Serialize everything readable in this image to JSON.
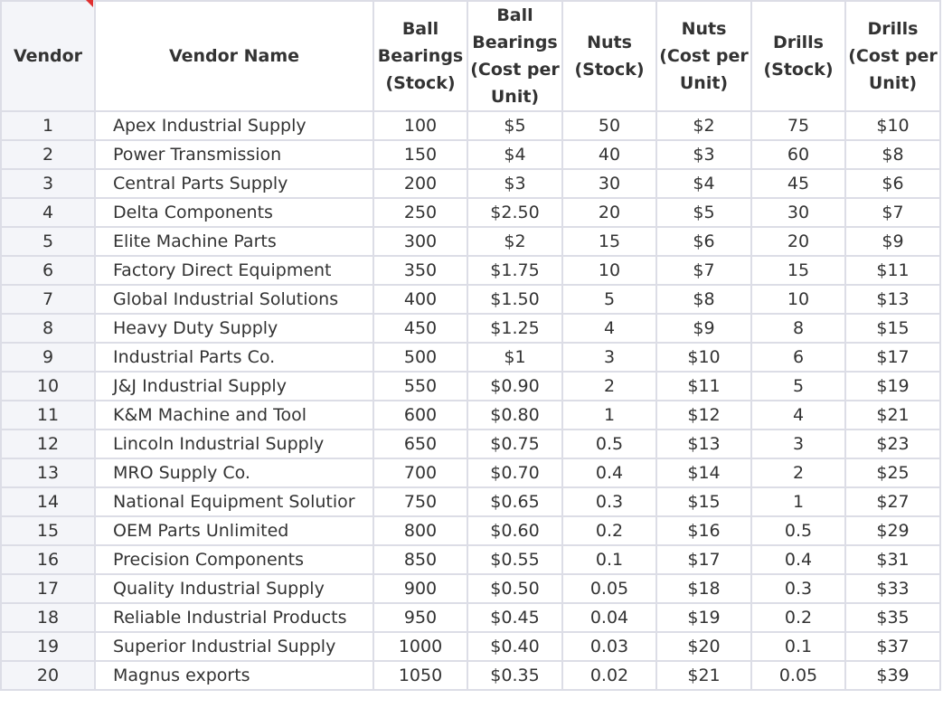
{
  "columns": [
    "Vendor",
    "Vendor Name",
    "Ball\nBearings\n(Stock)",
    "Ball\nBearings\n(Cost per\nUnit)",
    "Nuts\n(Stock)",
    "Nuts\n(Cost per\nUnit)",
    "Drills\n(Stock)",
    "Drills\n(Cost per\nUnit)"
  ],
  "rows": [
    [
      "1",
      "Apex Industrial Supply",
      "100",
      "$5",
      "50",
      "$2",
      "75",
      "$10"
    ],
    [
      "2",
      "Power Transmission",
      "150",
      "$4",
      "40",
      "$3",
      "60",
      "$8"
    ],
    [
      "3",
      "Central Parts Supply",
      "200",
      "$3",
      "30",
      "$4",
      "45",
      "$6"
    ],
    [
      "4",
      "Delta Components",
      "250",
      "$2.50",
      "20",
      "$5",
      "30",
      "$7"
    ],
    [
      "5",
      "Elite Machine Parts",
      "300",
      "$2",
      "15",
      "$6",
      "20",
      "$9"
    ],
    [
      "6",
      "Factory Direct Equipment",
      "350",
      "$1.75",
      "10",
      "$7",
      "15",
      "$11"
    ],
    [
      "7",
      "Global Industrial Solutions",
      "400",
      "$1.50",
      "5",
      "$8",
      "10",
      "$13"
    ],
    [
      "8",
      "Heavy Duty Supply",
      "450",
      "$1.25",
      "4",
      "$9",
      "8",
      "$15"
    ],
    [
      "9",
      "Industrial Parts Co.",
      "500",
      "$1",
      "3",
      "$10",
      "6",
      "$17"
    ],
    [
      "10",
      "J&J Industrial Supply",
      "550",
      "$0.90",
      "2",
      "$11",
      "5",
      "$19"
    ],
    [
      "11",
      "K&M Machine and Tool",
      "600",
      "$0.80",
      "1",
      "$12",
      "4",
      "$21"
    ],
    [
      "12",
      "Lincoln Industrial Supply",
      "650",
      "$0.75",
      "0.5",
      "$13",
      "3",
      "$23"
    ],
    [
      "13",
      "MRO Supply Co.",
      "700",
      "$0.70",
      "0.4",
      "$14",
      "2",
      "$25"
    ],
    [
      "14",
      "National Equipment Solutior",
      "750",
      "$0.65",
      "0.3",
      "$15",
      "1",
      "$27"
    ],
    [
      "15",
      "OEM Parts Unlimited",
      "800",
      "$0.60",
      "0.2",
      "$16",
      "0.5",
      "$29"
    ],
    [
      "16",
      "Precision Components",
      "850",
      "$0.55",
      "0.1",
      "$17",
      "0.4",
      "$31"
    ],
    [
      "17",
      "Quality Industrial Supply",
      "900",
      "$0.50",
      "0.05",
      "$18",
      "0.3",
      "$33"
    ],
    [
      "18",
      "Reliable Industrial Products",
      "950",
      "$0.45",
      "0.04",
      "$19",
      "0.2",
      "$35"
    ],
    [
      "19",
      "Superior Industrial Supply",
      "1000",
      "$0.40",
      "0.03",
      "$20",
      "0.1",
      "$37"
    ],
    [
      "20",
      "Magnus exports",
      "1050",
      "$0.35",
      "0.02",
      "$21",
      "0.05",
      "$39"
    ]
  ],
  "colors": {
    "grid_line": "#dcdde6",
    "row_header_bg": "#f4f5f9",
    "text": "#333333",
    "comment_marker": "#e03030"
  }
}
